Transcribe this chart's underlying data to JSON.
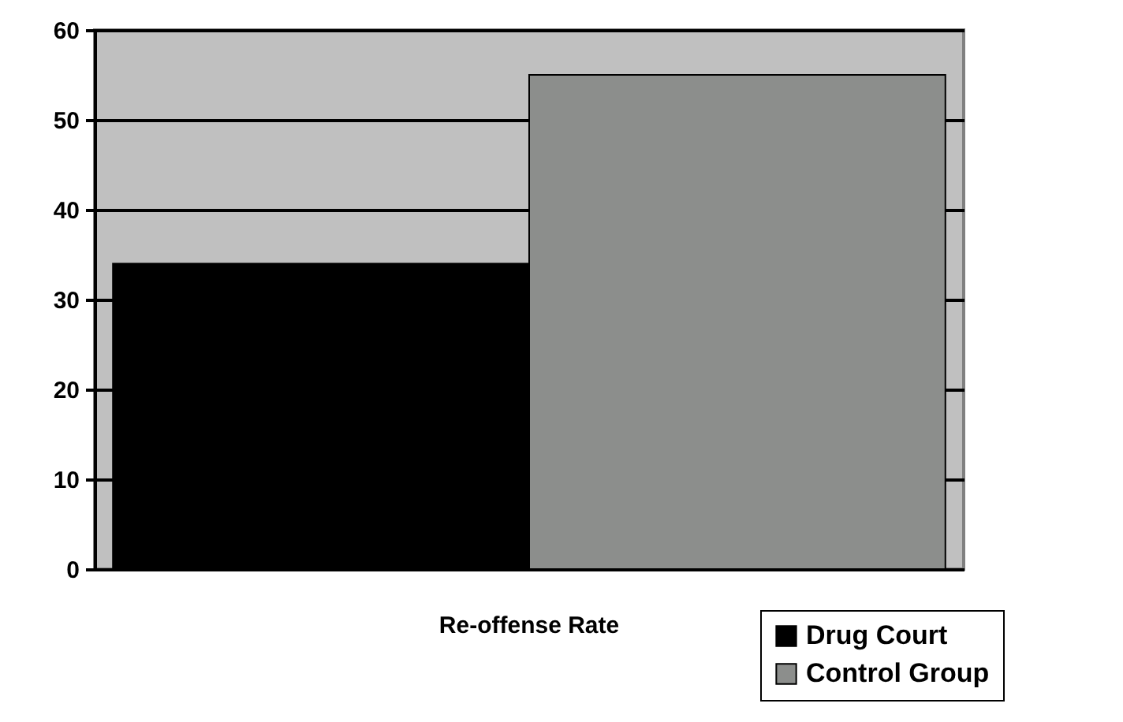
{
  "chart_data": {
    "type": "bar",
    "categories": [
      "Re-offense Rate"
    ],
    "series": [
      {
        "name": "Drug Court",
        "color": "#000000",
        "values": [
          34
        ]
      },
      {
        "name": "Control Group",
        "color": "#8c8e8c",
        "values": [
          55
        ]
      }
    ],
    "ylim": [
      0,
      60
    ],
    "yticks": [
      0,
      10,
      20,
      30,
      40,
      50,
      60
    ],
    "grid": "y",
    "legend": "bottom right"
  }
}
